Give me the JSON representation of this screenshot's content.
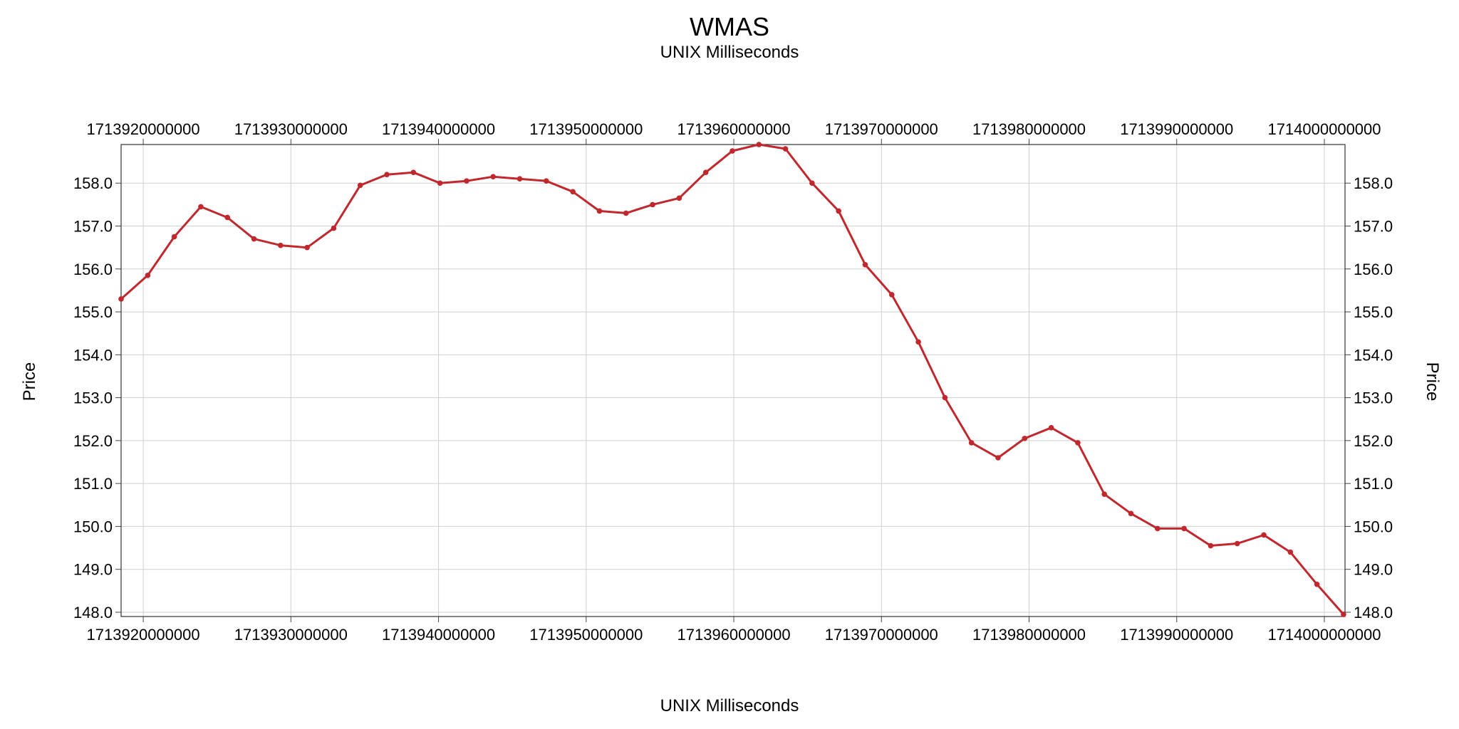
{
  "chart_data": {
    "type": "line",
    "title": "WMAS",
    "subtitle": "UNIX Milliseconds",
    "xlabel": "UNIX Milliseconds",
    "ylabel": "Price",
    "ylabel_right": "Price",
    "xlim": [
      1713918500000,
      1714001400000
    ],
    "ylim": [
      147.9,
      158.9
    ],
    "x_ticks": [
      1713920000000,
      1713930000000,
      1713940000000,
      1713950000000,
      1713960000000,
      1713970000000,
      1713980000000,
      1713990000000,
      1714000000000
    ],
    "x_tick_labels": [
      "1713920000000",
      "1713930000000",
      "1713940000000",
      "1713950000000",
      "1713960000000",
      "1713970000000",
      "1713980000000",
      "1713990000000",
      "1714000000000"
    ],
    "y_ticks": [
      148,
      149,
      150,
      151,
      152,
      153,
      154,
      155,
      156,
      157,
      158
    ],
    "y_tick_labels": [
      "148.0",
      "149.0",
      "150.0",
      "151.0",
      "152.0",
      "153.0",
      "154.0",
      "155.0",
      "156.0",
      "157.0",
      "158.0"
    ],
    "grid": true,
    "series": [
      {
        "color": "#c0282d",
        "x": [
          1713918500000,
          1713920300000,
          1713922100000,
          1713923900000,
          1713925700000,
          1713927500000,
          1713929300000,
          1713931100000,
          1713932900000,
          1713934700000,
          1713936500000,
          1713938300000,
          1713940100000,
          1713941900000,
          1713943700000,
          1713945500000,
          1713947300000,
          1713949100000,
          1713950900000,
          1713952700000,
          1713954500000,
          1713956300000,
          1713958100000,
          1713959900000,
          1713961700000,
          1713963500000,
          1713965300000,
          1713967100000,
          1713968900000,
          1713970700000,
          1713972500000,
          1713974300000,
          1713976100000,
          1713977900000,
          1713979700000,
          1713981500000,
          1713983300000,
          1713985100000,
          1713986900000,
          1713988700000,
          1713990500000,
          1713992300000,
          1713994100000,
          1713995900000,
          1713997700000,
          1713999500000,
          1714001300000
        ],
        "y": [
          155.3,
          155.85,
          156.75,
          157.45,
          157.2,
          156.7,
          156.55,
          156.5,
          156.95,
          157.95,
          158.2,
          158.25,
          158.0,
          158.05,
          158.15,
          158.1,
          158.05,
          157.8,
          157.35,
          157.3,
          157.5,
          157.65,
          158.25,
          158.75,
          158.9,
          158.8,
          158.0,
          157.35,
          156.1,
          155.4,
          154.3,
          153.0,
          151.95,
          151.6,
          152.05,
          152.3,
          151.95,
          150.75,
          150.3,
          149.95,
          149.95,
          149.55,
          149.6,
          149.8,
          149.4,
          148.65,
          147.95
        ]
      }
    ]
  }
}
